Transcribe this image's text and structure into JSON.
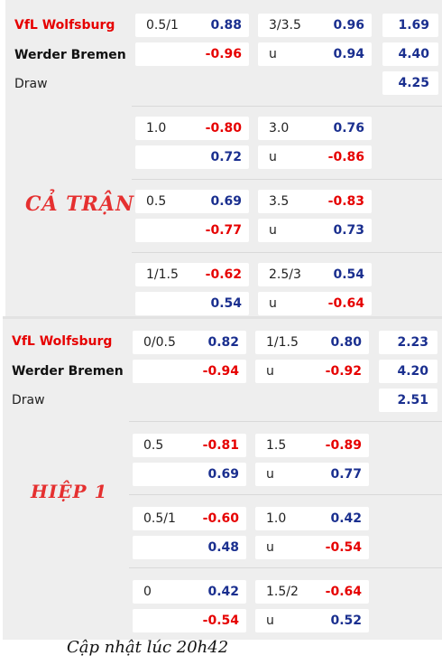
{
  "full_match": {
    "label": "CẢ TRẬN",
    "home_team": "VfL Wolfsburg",
    "away_team": "Werder Bremen",
    "draw_label": "Draw",
    "one_x_two": [
      "1.69",
      "4.40",
      "4.25"
    ],
    "rows": [
      {
        "handicap": "0.5/1",
        "hc_home": "0.88",
        "hc_away": "-0.96",
        "total": "3/3.5",
        "over": "0.96",
        "under_label": "u",
        "under": "0.94"
      },
      {
        "handicap": "1.0",
        "hc_home": "-0.80",
        "hc_away": "0.72",
        "total": "3.0",
        "over": "0.76",
        "under_label": "u",
        "under": "-0.86"
      },
      {
        "handicap": "0.5",
        "hc_home": "0.69",
        "hc_away": "-0.77",
        "total": "3.5",
        "over": "-0.83",
        "under_label": "u",
        "under": "0.73"
      },
      {
        "handicap": "1/1.5",
        "hc_home": "-0.62",
        "hc_away": "0.54",
        "total": "2.5/3",
        "over": "0.54",
        "under_label": "u",
        "under": "-0.64"
      }
    ]
  },
  "first_half": {
    "label": "HIỆP 1",
    "home_team": "VfL Wolfsburg",
    "away_team": "Werder Bremen",
    "draw_label": "Draw",
    "one_x_two": [
      "2.23",
      "4.20",
      "2.51"
    ],
    "rows": [
      {
        "handicap": "0/0.5",
        "hc_home": "0.82",
        "hc_away": "-0.94",
        "total": "1/1.5",
        "over": "0.80",
        "under_label": "u",
        "under": "-0.92"
      },
      {
        "handicap": "0.5",
        "hc_home": "-0.81",
        "hc_away": "0.69",
        "total": "1.5",
        "over": "-0.89",
        "under_label": "u",
        "under": "0.77"
      },
      {
        "handicap": "0.5/1",
        "hc_home": "-0.60",
        "hc_away": "0.48",
        "total": "1.0",
        "over": "0.42",
        "under_label": "u",
        "under": "-0.54"
      },
      {
        "handicap": "0",
        "hc_home": "0.42",
        "hc_away": "-0.54",
        "total": "1.5/2",
        "over": "-0.64",
        "under_label": "u",
        "under": "0.52"
      }
    ]
  },
  "footer": "Cập nhật lúc 20h42"
}
